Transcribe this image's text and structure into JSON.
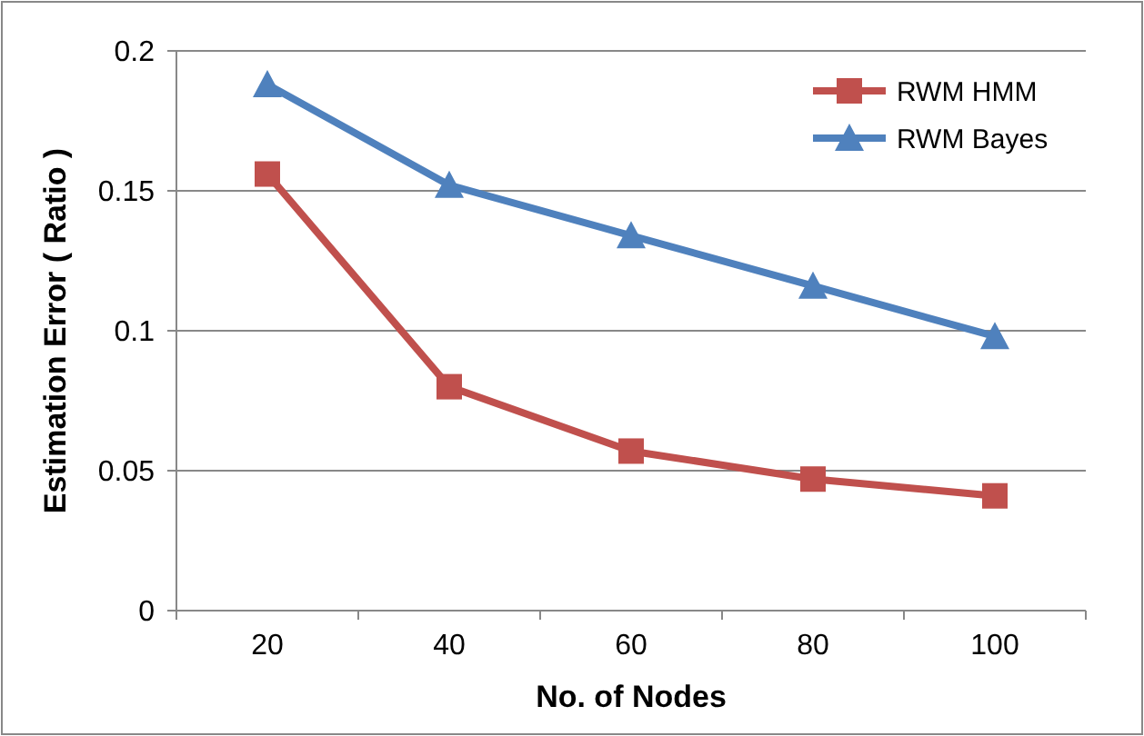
{
  "chart_data": {
    "type": "line",
    "xlabel": "No. of Nodes",
    "ylabel": "Estimation Error ( Ratio )",
    "categories": [
      "20",
      "40",
      "60",
      "80",
      "100"
    ],
    "series": [
      {
        "name": "RWM HMM",
        "color": "#c0504d",
        "marker": "square",
        "values": [
          0.156,
          0.08,
          0.057,
          0.047,
          0.041
        ]
      },
      {
        "name": "RWM Bayes",
        "color": "#4f81bd",
        "marker": "triangle",
        "values": [
          0.188,
          0.152,
          0.134,
          0.116,
          0.098
        ]
      }
    ],
    "ylim": [
      0,
      0.2
    ],
    "yticks": [
      0,
      0.05,
      0.1,
      0.15,
      0.2
    ],
    "grid": "y",
    "legend": "top right",
    "line_style": "solid"
  }
}
